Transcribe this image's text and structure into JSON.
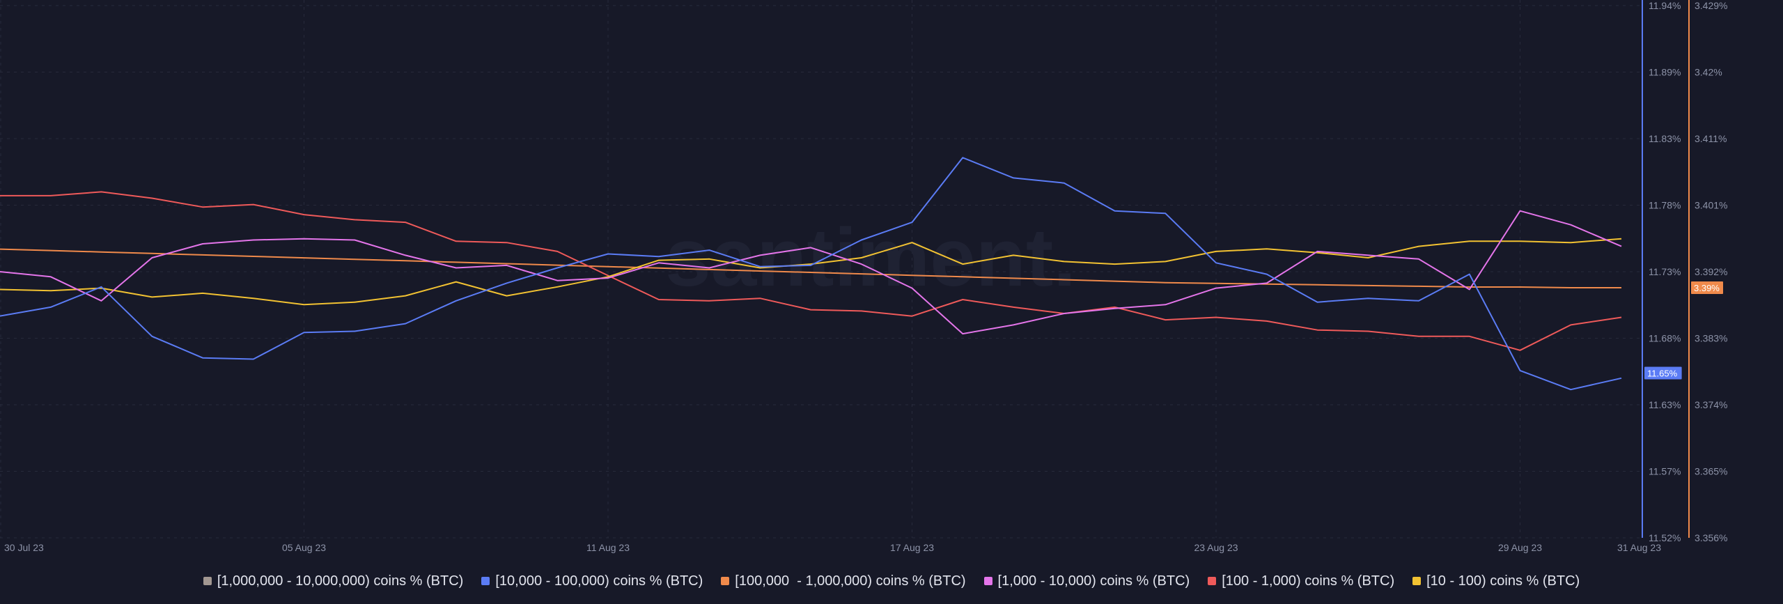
{
  "watermark": "santiment.",
  "colors": {
    "background": "#171928",
    "grid": "#272a3b",
    "left_axis": "#5b7cf5",
    "right_axis": "#f08a4b"
  },
  "chart_data": {
    "type": "line",
    "x_dates": [
      "30 Jul 23",
      "31 Jul 23",
      "01 Aug 23",
      "02 Aug 23",
      "03 Aug 23",
      "04 Aug 23",
      "05 Aug 23",
      "06 Aug 23",
      "07 Aug 23",
      "08 Aug 23",
      "09 Aug 23",
      "10 Aug 23",
      "11 Aug 23",
      "12 Aug 23",
      "13 Aug 23",
      "14 Aug 23",
      "15 Aug 23",
      "16 Aug 23",
      "17 Aug 23",
      "18 Aug 23",
      "19 Aug 23",
      "20 Aug 23",
      "21 Aug 23",
      "22 Aug 23",
      "23 Aug 23",
      "24 Aug 23",
      "25 Aug 23",
      "26 Aug 23",
      "27 Aug 23",
      "28 Aug 23",
      "29 Aug 23",
      "30 Aug 23",
      "31 Aug 23"
    ],
    "x_tick_labels": [
      "30 Jul 23",
      "05 Aug 23",
      "11 Aug 23",
      "17 Aug 23",
      "23 Aug 23",
      "29 Aug 23",
      "31 Aug 23"
    ],
    "left_axis": {
      "ticks": [
        "11.94%",
        "11.89%",
        "11.83%",
        "11.78%",
        "11.73%",
        "11.68%",
        "11.63%",
        "11.57%",
        "11.52%"
      ],
      "range": [
        11.52,
        11.94
      ],
      "current_label": "11.65%",
      "current_value": 11.65
    },
    "right_axis": {
      "ticks": [
        "3.429%",
        "3.42%",
        "3.411%",
        "3.401%",
        "3.392%",
        "3.383%",
        "3.374%",
        "3.365%",
        "3.356%"
      ],
      "range": [
        3.356,
        3.429
      ],
      "current_label": "3.39%",
      "current_value": 3.3903
    },
    "series": [
      {
        "name": "[1,000,000 - 10,000,000) coins % (BTC)",
        "color": "#a29791",
        "axis": "none",
        "values": []
      },
      {
        "name": "[10,000 - 100,000) coins % (BTC)",
        "color": "#5b7cf5",
        "axis": "left",
        "values": [
          11.695,
          11.702,
          11.718,
          11.679,
          11.662,
          11.661,
          11.682,
          11.683,
          11.689,
          11.707,
          11.721,
          11.733,
          11.744,
          11.742,
          11.747,
          11.734,
          11.735,
          11.755,
          11.769,
          11.82,
          11.804,
          11.8,
          11.778,
          11.776,
          11.737,
          11.728,
          11.706,
          11.709,
          11.707,
          11.728,
          11.652,
          11.637,
          11.646
        ]
      },
      {
        "name": "[100,000  - 1,000,000) coins % (BTC)",
        "color": "#f08a4b",
        "axis": "right",
        "values": [
          3.3956,
          3.3954,
          3.3952,
          3.395,
          3.3948,
          3.3946,
          3.3944,
          3.3942,
          3.394,
          3.3938,
          3.3936,
          3.3934,
          3.3932,
          3.393,
          3.3928,
          3.3926,
          3.3924,
          3.3922,
          3.392,
          3.3918,
          3.3916,
          3.3914,
          3.3912,
          3.391,
          3.3909,
          3.3908,
          3.3907,
          3.3906,
          3.3905,
          3.3904,
          3.3904,
          3.3903,
          3.3903
        ]
      },
      {
        "name": "[1,000 - 10,000) coins % (BTC)",
        "color": "#e475ea",
        "axis": "left",
        "values": [
          11.73,
          11.726,
          11.707,
          11.741,
          11.752,
          11.755,
          11.756,
          11.755,
          11.743,
          11.733,
          11.735,
          11.723,
          11.725,
          11.737,
          11.733,
          11.743,
          11.749,
          11.736,
          11.717,
          11.681,
          11.688,
          11.697,
          11.701,
          11.704,
          11.717,
          11.721,
          11.746,
          11.743,
          11.74,
          11.716,
          11.778,
          11.767,
          11.75
        ]
      },
      {
        "name": "[100 - 1,000) coins % (BTC)",
        "color": "#ef5a5a",
        "axis": "left",
        "values": [
          11.79,
          11.79,
          11.793,
          11.788,
          11.781,
          11.783,
          11.775,
          11.771,
          11.769,
          11.754,
          11.753,
          11.746,
          11.727,
          11.708,
          11.707,
          11.709,
          11.7,
          11.699,
          11.695,
          11.708,
          11.702,
          11.697,
          11.702,
          11.692,
          11.694,
          11.691,
          11.684,
          11.683,
          11.679,
          11.679,
          11.668,
          11.688,
          11.694
        ]
      },
      {
        "name": "[10 - 100) coins % (BTC)",
        "color": "#f2c232",
        "axis": "left",
        "values": [
          11.716,
          11.715,
          11.717,
          11.71,
          11.713,
          11.709,
          11.704,
          11.706,
          11.711,
          11.722,
          11.711,
          11.718,
          11.726,
          11.739,
          11.74,
          11.733,
          11.736,
          11.741,
          11.753,
          11.736,
          11.743,
          11.738,
          11.736,
          11.738,
          11.746,
          11.748,
          11.745,
          11.741,
          11.75,
          11.754,
          11.754,
          11.753,
          11.756
        ]
      }
    ],
    "grid": true,
    "legend_position": "bottom"
  }
}
